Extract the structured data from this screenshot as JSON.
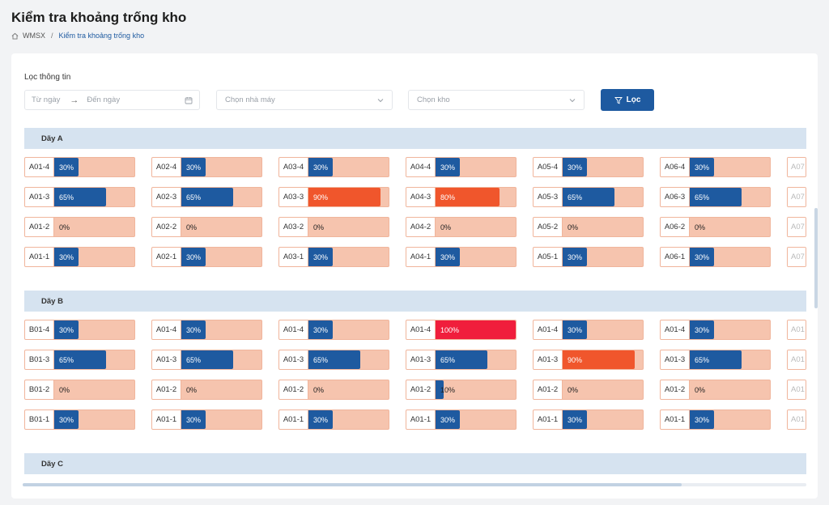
{
  "header": {
    "title": "Kiểm tra khoảng trống kho",
    "breadcrumb": {
      "root": "WMSX",
      "separator": "/",
      "current": "Kiểm tra khoảng trống kho"
    }
  },
  "filters": {
    "label": "Lọc thông tin",
    "from_placeholder": "Từ ngày",
    "to_placeholder": "Đến ngày",
    "factory_placeholder": "Chọn nhà máy",
    "warehouse_placeholder": "Chọn kho",
    "filter_button": "Lọc"
  },
  "colors": {
    "accent": "#1e5aa0",
    "empty": "#f6c4ae",
    "warning": "#f0562c",
    "full": "#f01e3c"
  },
  "rows": [
    {
      "name": "Dãy A",
      "columns": [
        [
          {
            "code": "A01-4",
            "pct": 30
          },
          {
            "code": "A01-3",
            "pct": 65
          },
          {
            "code": "A01-2",
            "pct": 0
          },
          {
            "code": "A01-1",
            "pct": 30
          }
        ],
        [
          {
            "code": "A02-4",
            "pct": 30
          },
          {
            "code": "A02-3",
            "pct": 65
          },
          {
            "code": "A02-2",
            "pct": 0
          },
          {
            "code": "A02-1",
            "pct": 30
          }
        ],
        [
          {
            "code": "A03-4",
            "pct": 30
          },
          {
            "code": "A03-3",
            "pct": 90
          },
          {
            "code": "A03-2",
            "pct": 0
          },
          {
            "code": "A03-1",
            "pct": 30
          }
        ],
        [
          {
            "code": "A04-4",
            "pct": 30
          },
          {
            "code": "A04-3",
            "pct": 80
          },
          {
            "code": "A04-2",
            "pct": 0
          },
          {
            "code": "A04-1",
            "pct": 30
          }
        ],
        [
          {
            "code": "A05-4",
            "pct": 30
          },
          {
            "code": "A05-3",
            "pct": 65
          },
          {
            "code": "A05-2",
            "pct": 0
          },
          {
            "code": "A05-1",
            "pct": 30
          }
        ],
        [
          {
            "code": "A06-4",
            "pct": 30
          },
          {
            "code": "A06-3",
            "pct": 65
          },
          {
            "code": "A06-2",
            "pct": 0
          },
          {
            "code": "A06-1",
            "pct": 30
          }
        ],
        [
          {
            "code": "A07",
            "pct": null
          },
          {
            "code": "A07",
            "pct": null
          },
          {
            "code": "A07",
            "pct": null
          },
          {
            "code": "A07",
            "pct": null
          }
        ]
      ]
    },
    {
      "name": "Dãy B",
      "columns": [
        [
          {
            "code": "B01-4",
            "pct": 30
          },
          {
            "code": "B01-3",
            "pct": 65
          },
          {
            "code": "B01-2",
            "pct": 0
          },
          {
            "code": "B01-1",
            "pct": 30
          }
        ],
        [
          {
            "code": "A01-4",
            "pct": 30
          },
          {
            "code": "A01-3",
            "pct": 65
          },
          {
            "code": "A01-2",
            "pct": 0
          },
          {
            "code": "A01-1",
            "pct": 30
          }
        ],
        [
          {
            "code": "A01-4",
            "pct": 30
          },
          {
            "code": "A01-3",
            "pct": 65
          },
          {
            "code": "A01-2",
            "pct": 0
          },
          {
            "code": "A01-1",
            "pct": 30
          }
        ],
        [
          {
            "code": "A01-4",
            "pct": 100
          },
          {
            "code": "A01-3",
            "pct": 65
          },
          {
            "code": "A01-2",
            "pct": 10
          },
          {
            "code": "A01-1",
            "pct": 30
          }
        ],
        [
          {
            "code": "A01-4",
            "pct": 30
          },
          {
            "code": "A01-3",
            "pct": 90
          },
          {
            "code": "A01-2",
            "pct": 0
          },
          {
            "code": "A01-1",
            "pct": 30
          }
        ],
        [
          {
            "code": "A01-4",
            "pct": 30
          },
          {
            "code": "A01-3",
            "pct": 65
          },
          {
            "code": "A01-2",
            "pct": 0
          },
          {
            "code": "A01-1",
            "pct": 30
          }
        ],
        [
          {
            "code": "A01",
            "pct": null
          },
          {
            "code": "A01",
            "pct": null
          },
          {
            "code": "A01",
            "pct": null
          },
          {
            "code": "A01",
            "pct": null
          }
        ]
      ]
    },
    {
      "name": "Dãy C",
      "columns": []
    }
  ]
}
